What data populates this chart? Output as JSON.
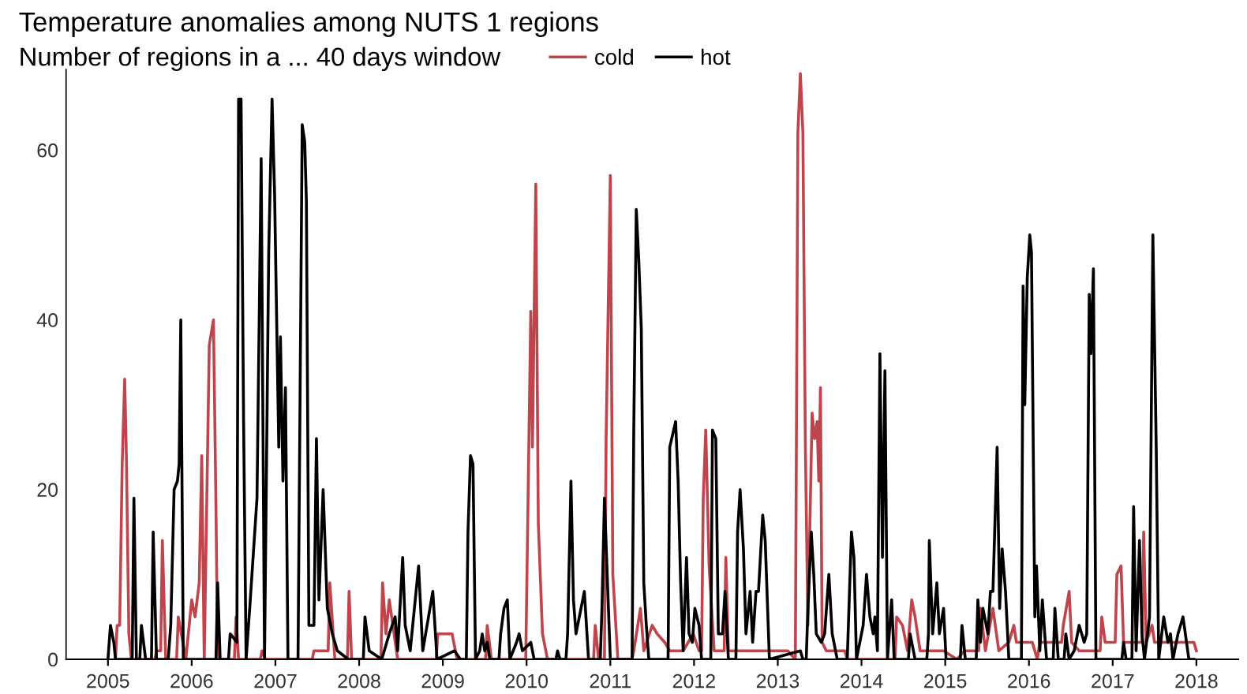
{
  "chart_data": {
    "type": "line",
    "title": "Temperature anomalies among NUTS 1 regions",
    "subtitle": "Number of regions in a ... 40 days window",
    "xlim": [
      2004.5,
      2018.5
    ],
    "xticks": [
      2005,
      2006,
      2007,
      2008,
      2009,
      2010,
      2011,
      2012,
      2013,
      2014,
      2015,
      2016,
      2017,
      2018
    ],
    "ylim": [
      0,
      69.5
    ],
    "yticks": [
      0,
      20,
      40,
      60
    ],
    "grid": false,
    "legend": "top",
    "tick_labels": true,
    "series": [
      {
        "name": "cold",
        "color": "#c0444c",
        "x": [
          2005.09,
          2005.11,
          2005.14,
          2005.17,
          2005.2,
          2005.22,
          2005.25,
          2005.28,
          2005.56,
          2005.58,
          2005.63,
          2005.65,
          2005.69,
          2005.82,
          2005.84,
          2005.93,
          2006.0,
          2006.04,
          2006.09,
          2006.12,
          2006.15,
          2006.21,
          2006.26,
          2006.29,
          2006.31,
          2006.51,
          2006.53,
          2006.56,
          2006.82,
          2006.84,
          2006.88,
          2007.44,
          2007.46,
          2007.63,
          2007.65,
          2007.71,
          2007.86,
          2007.88,
          2007.91,
          2008.26,
          2008.28,
          2008.32,
          2008.36,
          2008.46,
          2008.92,
          2008.94,
          2009.11,
          2009.17,
          2009.51,
          2009.53,
          2009.58,
          2009.99,
          2010.05,
          2010.07,
          2010.11,
          2010.14,
          2010.19,
          2010.25,
          2010.8,
          2010.82,
          2010.86,
          2010.93,
          2010.95,
          2011.0,
          2011.03,
          2011.09,
          2011.26,
          2011.28,
          2011.36,
          2011.4,
          2011.5,
          2011.56,
          2011.65,
          2011.71,
          2011.87,
          2011.99,
          2012.06,
          2012.09,
          2012.11,
          2012.14,
          2012.18,
          2012.24,
          2012.36,
          2012.38,
          2012.41,
          2012.62,
          2012.87,
          2013.12,
          2013.21,
          2013.24,
          2013.27,
          2013.3,
          2013.33,
          2013.36,
          2013.41,
          2013.44,
          2013.47,
          2013.49,
          2013.51,
          2013.53,
          2013.58,
          2013.8,
          2013.83,
          2014.4,
          2014.42,
          2014.49,
          2014.55,
          2014.6,
          2014.64,
          2014.7,
          2014.98,
          2015.14,
          2015.23,
          2015.4,
          2015.42,
          2015.48,
          2015.57,
          2015.64,
          2015.76,
          2015.82,
          2015.85,
          2016.04,
          2016.1,
          2016.13,
          2016.39,
          2016.41,
          2016.48,
          2016.51,
          2016.6,
          2016.85,
          2016.87,
          2016.91,
          2017.03,
          2017.05,
          2017.1,
          2017.13,
          2017.28,
          2017.35,
          2017.37,
          2017.4,
          2017.47,
          2017.5,
          2017.91,
          2017.97,
          2018.0
        ],
        "values": [
          0,
          4,
          4,
          23,
          33,
          24,
          3,
          0,
          0,
          1,
          1,
          14,
          0,
          0,
          5,
          0,
          7,
          5,
          9,
          24,
          0,
          37,
          40,
          18,
          0,
          0,
          5,
          0,
          0,
          1,
          0,
          0,
          1,
          1,
          9,
          0,
          0,
          8,
          0,
          0,
          9,
          3,
          7,
          0,
          0,
          3,
          3,
          0,
          0,
          4,
          0,
          0,
          41,
          25,
          56,
          16,
          3,
          0,
          0,
          4,
          0,
          0,
          26,
          57,
          10,
          0,
          0,
          1,
          6,
          1,
          4,
          3,
          2,
          1,
          1,
          3,
          1,
          1,
          19,
          27,
          11,
          1,
          1,
          12,
          1,
          1,
          1,
          1,
          0,
          62,
          69,
          62,
          25,
          4,
          29,
          26,
          28,
          21,
          32,
          2,
          1,
          1,
          0,
          0,
          5,
          4,
          1,
          7,
          5,
          1,
          1,
          0,
          1,
          1,
          6,
          1,
          6,
          1,
          2,
          4,
          2,
          2,
          0,
          2,
          2,
          4,
          8,
          2,
          1,
          1,
          5,
          2,
          2,
          10,
          11,
          2,
          2,
          2,
          15,
          2,
          4,
          2,
          2,
          2,
          1
        ]
      },
      {
        "name": "hot",
        "color": "#000000",
        "x": [
          2005.0,
          2005.03,
          2005.07,
          2005.09,
          2005.29,
          2005.31,
          2005.34,
          2005.38,
          2005.4,
          2005.45,
          2005.52,
          2005.54,
          2005.58,
          2005.72,
          2005.75,
          2005.79,
          2005.83,
          2005.85,
          2005.87,
          2005.9,
          2006.29,
          2006.31,
          2006.34,
          2006.44,
          2006.46,
          2006.54,
          2006.56,
          2006.59,
          2006.62,
          2006.65,
          2006.7,
          2006.78,
          2006.83,
          2006.87,
          2006.92,
          2006.96,
          2006.99,
          2007.04,
          2007.06,
          2007.09,
          2007.12,
          2007.15,
          2007.27,
          2007.32,
          2007.35,
          2007.37,
          2007.4,
          2007.46,
          2007.49,
          2007.52,
          2007.57,
          2007.62,
          2007.68,
          2007.74,
          2007.87,
          2008.05,
          2008.07,
          2008.12,
          2008.27,
          2008.36,
          2008.43,
          2008.46,
          2008.52,
          2008.55,
          2008.61,
          2008.71,
          2008.76,
          2008.88,
          2008.93,
          2009.14,
          2009.21,
          2009.28,
          2009.3,
          2009.33,
          2009.36,
          2009.39,
          2009.44,
          2009.47,
          2009.5,
          2009.53,
          2009.56,
          2009.67,
          2009.69,
          2009.73,
          2009.77,
          2009.8,
          2009.88,
          2009.91,
          2009.95,
          2010.05,
          2010.09,
          2010.35,
          2010.37,
          2010.4,
          2010.47,
          2010.49,
          2010.53,
          2010.56,
          2010.59,
          2010.65,
          2010.69,
          2010.74,
          2010.88,
          2010.9,
          2010.93,
          2010.97,
          2011.0,
          2011.26,
          2011.28,
          2011.31,
          2011.34,
          2011.37,
          2011.4,
          2011.43,
          2011.46,
          2011.69,
          2011.71,
          2011.78,
          2011.81,
          2011.84,
          2011.87,
          2011.91,
          2011.94,
          2011.98,
          2012.01,
          2012.06,
          2012.09,
          2012.2,
          2012.22,
          2012.26,
          2012.29,
          2012.34,
          2012.37,
          2012.41,
          2012.5,
          2012.52,
          2012.55,
          2012.59,
          2012.62,
          2012.67,
          2012.7,
          2012.74,
          2012.77,
          2012.82,
          2012.85,
          2012.9,
          2013.27,
          2013.3,
          2013.34,
          2013.36,
          2013.4,
          2013.43,
          2013.46,
          2013.52,
          2013.56,
          2013.61,
          2013.65,
          2013.71,
          2013.83,
          2013.88,
          2013.91,
          2013.94,
          2014.02,
          2014.06,
          2014.1,
          2014.14,
          2014.16,
          2014.19,
          2014.22,
          2014.25,
          2014.28,
          2014.31,
          2014.36,
          2014.39,
          2014.56,
          2014.58,
          2014.64,
          2014.78,
          2014.8,
          2014.81,
          2014.85,
          2014.9,
          2014.93,
          2014.98,
          2015.01,
          2015.18,
          2015.2,
          2015.24,
          2015.37,
          2015.39,
          2015.42,
          2015.45,
          2015.51,
          2015.54,
          2015.57,
          2015.62,
          2015.65,
          2015.68,
          2015.72,
          2015.76,
          2015.91,
          2015.93,
          2015.95,
          2015.98,
          2016.01,
          2016.03,
          2016.07,
          2016.09,
          2016.13,
          2016.16,
          2016.21,
          2016.29,
          2016.31,
          2016.35,
          2016.42,
          2016.44,
          2016.48,
          2016.54,
          2016.6,
          2016.66,
          2016.69,
          2016.72,
          2016.74,
          2016.77,
          2016.8,
          2017.11,
          2017.13,
          2017.16,
          2017.23,
          2017.25,
          2017.28,
          2017.32,
          2017.35,
          2017.38,
          2017.44,
          2017.48,
          2017.52,
          2017.55,
          2017.61,
          2017.66,
          2017.69,
          2017.72,
          2017.78,
          2017.84,
          2017.91,
          2017.97
        ],
        "values": [
          0,
          4,
          2,
          0,
          0,
          19,
          0,
          0,
          4,
          0,
          0,
          15,
          0,
          0,
          4,
          20,
          21,
          23,
          40,
          0,
          0,
          9,
          0,
          0,
          3,
          2,
          66,
          66,
          28,
          0,
          7,
          19,
          59,
          0,
          48,
          66,
          55,
          25,
          38,
          21,
          32,
          0,
          0,
          63,
          61,
          54,
          4,
          4,
          26,
          7,
          20,
          6,
          3,
          1,
          0,
          0,
          5,
          1,
          0,
          3,
          5,
          1,
          12,
          4,
          1,
          11,
          1,
          8,
          0,
          1,
          0,
          0,
          15,
          24,
          23,
          0,
          1,
          3,
          1,
          2,
          0,
          0,
          3,
          6,
          7,
          0,
          2,
          3,
          1,
          2,
          0,
          0,
          1,
          0,
          0,
          3,
          21,
          7,
          3,
          6,
          8,
          0,
          0,
          6,
          19,
          8,
          0,
          0,
          27,
          53,
          47,
          39,
          9,
          4,
          0,
          0,
          25,
          28,
          21,
          9,
          1,
          12,
          3,
          2,
          6,
          4,
          0,
          0,
          27,
          26,
          3,
          3,
          8,
          0,
          0,
          15,
          20,
          13,
          3,
          8,
          2,
          8,
          8,
          17,
          14,
          0,
          1,
          0,
          0,
          6,
          15,
          10,
          3,
          2,
          3,
          10,
          3,
          0,
          0,
          15,
          12,
          0,
          4,
          10,
          5,
          3,
          5,
          1,
          36,
          12,
          34,
          0,
          7,
          0,
          0,
          3,
          0,
          0,
          3,
          14,
          3,
          9,
          3,
          6,
          0,
          0,
          4,
          0,
          0,
          7,
          2,
          6,
          3,
          8,
          8,
          25,
          6,
          13,
          8,
          0,
          0,
          44,
          30,
          45,
          50,
          48,
          5,
          11,
          1,
          7,
          0,
          0,
          6,
          0,
          0,
          3,
          0,
          1,
          4,
          2,
          3,
          43,
          36,
          46,
          0,
          0,
          2,
          0,
          0,
          18,
          1,
          14,
          3,
          0,
          5,
          50,
          25,
          0,
          5,
          2,
          3,
          0,
          3,
          5,
          0,
          0
        ]
      }
    ]
  }
}
